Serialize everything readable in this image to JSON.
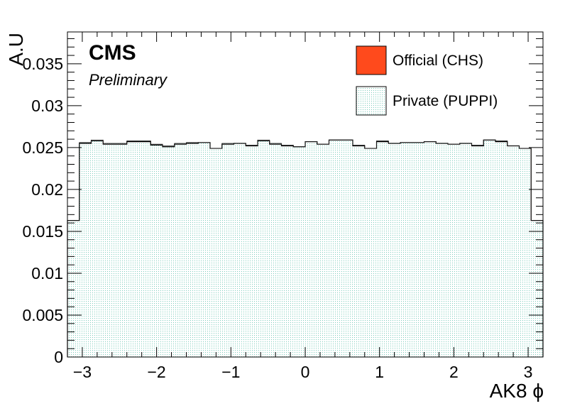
{
  "chart_data": {
    "type": "bar",
    "ylabel": "A.U",
    "xlabel": "AK8 ϕ",
    "xlim": [
      -3.2,
      3.2
    ],
    "ylim": [
      0,
      0.0388
    ],
    "xticks": [
      -3,
      -2,
      -1,
      0,
      1,
      2,
      3
    ],
    "xtick_labels": [
      "−3",
      "−2",
      "−1",
      "0",
      "1",
      "2",
      "3"
    ],
    "yticks": [
      0,
      0.005,
      0.01,
      0.015,
      0.02,
      0.025,
      0.03,
      0.035
    ],
    "ytick_labels": [
      "0",
      "0.005",
      "0.01",
      "0.015",
      "0.02",
      "0.025",
      "0.03",
      "0.035"
    ],
    "bin_edges": [
      -3.2,
      -3.04,
      -2.88,
      -2.72,
      -2.56,
      -2.4,
      -2.24,
      -2.08,
      -1.92,
      -1.76,
      -1.6,
      -1.44,
      -1.28,
      -1.12,
      -0.96,
      -0.8,
      -0.64,
      -0.48,
      -0.32,
      -0.16,
      0,
      0.16,
      0.32,
      0.48,
      0.64,
      0.8,
      0.96,
      1.12,
      1.28,
      1.44,
      1.6,
      1.76,
      1.92,
      2.08,
      2.24,
      2.4,
      2.56,
      2.72,
      2.88,
      3.04,
      3.2
    ],
    "series": [
      {
        "name": "Official (CHS)",
        "style": "filled",
        "color": "#ff4a1c",
        "values": [
          0.0163,
          0.0255,
          0.0258,
          0.0254,
          0.0254,
          0.0257,
          0.0257,
          0.0253,
          0.0251,
          0.0254,
          0.0255,
          0.0256,
          0.0249,
          0.0254,
          0.0255,
          0.0252,
          0.0258,
          0.0254,
          0.0252,
          0.0251,
          0.0257,
          0.0254,
          0.0259,
          0.0259,
          0.0252,
          0.0249,
          0.0257,
          0.0255,
          0.0256,
          0.0256,
          0.0257,
          0.0255,
          0.0254,
          0.0255,
          0.0252,
          0.0259,
          0.0257,
          0.0252,
          0.0249,
          0.0163
        ]
      },
      {
        "name": "Private (PUPPI)",
        "style": "hatched",
        "color": "#9fd9cf",
        "values": [
          0.0163,
          0.0256,
          0.0259,
          0.0255,
          0.0255,
          0.0258,
          0.0258,
          0.0254,
          0.0252,
          0.0255,
          0.0256,
          0.0256,
          0.0249,
          0.0255,
          0.0255,
          0.0253,
          0.0259,
          0.0255,
          0.0253,
          0.0251,
          0.0257,
          0.0254,
          0.0259,
          0.0259,
          0.0253,
          0.0249,
          0.0258,
          0.0255,
          0.0256,
          0.0256,
          0.0257,
          0.0255,
          0.0254,
          0.0255,
          0.0253,
          0.0259,
          0.0258,
          0.0252,
          0.0249,
          0.0163
        ]
      }
    ],
    "annotations": {
      "experiment": "CMS",
      "status": "Preliminary"
    },
    "legend": {
      "position": "top-right",
      "entries": [
        "Official (CHS)",
        "Private (PUPPI)"
      ]
    },
    "grid": false
  }
}
